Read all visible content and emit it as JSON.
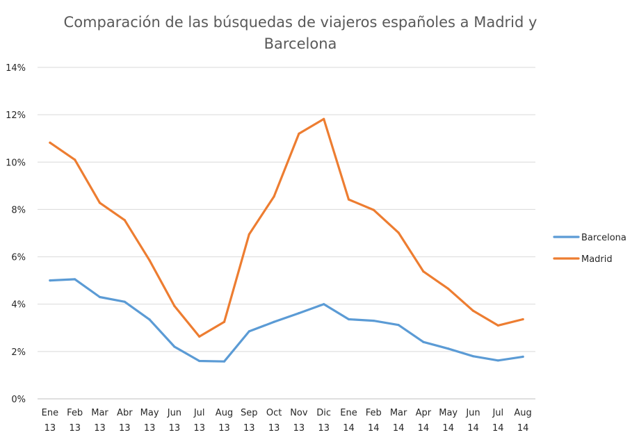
{
  "chart_data": {
    "type": "line",
    "title_lines": [
      "Comparación de las búsquedas de viajeros españoles a Madrid y",
      "Barcelona"
    ],
    "xlabel": "",
    "ylabel": "",
    "categories": [
      [
        "Ene",
        "13"
      ],
      [
        "Feb",
        "13"
      ],
      [
        "Mar",
        "13"
      ],
      [
        "Abr",
        "13"
      ],
      [
        "May",
        "13"
      ],
      [
        "Jun",
        "13"
      ],
      [
        "Jul",
        "13"
      ],
      [
        "Aug",
        "13"
      ],
      [
        "Sep",
        "13"
      ],
      [
        "Oct",
        "13"
      ],
      [
        "Nov",
        "13"
      ],
      [
        "Dic",
        "13"
      ],
      [
        "Ene",
        "14"
      ],
      [
        "Feb",
        "14"
      ],
      [
        "Mar",
        "14"
      ],
      [
        "Apr",
        "14"
      ],
      [
        "May",
        "14"
      ],
      [
        "Jun",
        "14"
      ],
      [
        "Jul",
        "14"
      ],
      [
        "Aug",
        "14"
      ]
    ],
    "ylim": [
      0,
      14
    ],
    "yticks": [
      0,
      2,
      4,
      6,
      8,
      10,
      12,
      14
    ],
    "ytick_labels": [
      "0%",
      "2%",
      "4%",
      "6%",
      "8%",
      "10%",
      "12%",
      "14%"
    ],
    "grid": true,
    "legend_position": "right",
    "series": [
      {
        "name": "Barcelona",
        "color": "#5b9bd5",
        "values": [
          5.0,
          5.05,
          4.3,
          4.1,
          3.35,
          2.2,
          1.6,
          1.58,
          2.85,
          3.25,
          3.62,
          4.0,
          3.36,
          3.3,
          3.12,
          2.4,
          2.12,
          1.8,
          1.62,
          1.78
        ]
      },
      {
        "name": "Madrid",
        "color": "#ed7d31",
        "values": [
          10.82,
          10.1,
          8.28,
          7.55,
          5.85,
          3.92,
          2.63,
          3.25,
          6.95,
          8.55,
          11.2,
          11.82,
          8.42,
          7.98,
          7.02,
          5.38,
          4.65,
          3.72,
          3.1,
          3.36
        ]
      }
    ]
  }
}
